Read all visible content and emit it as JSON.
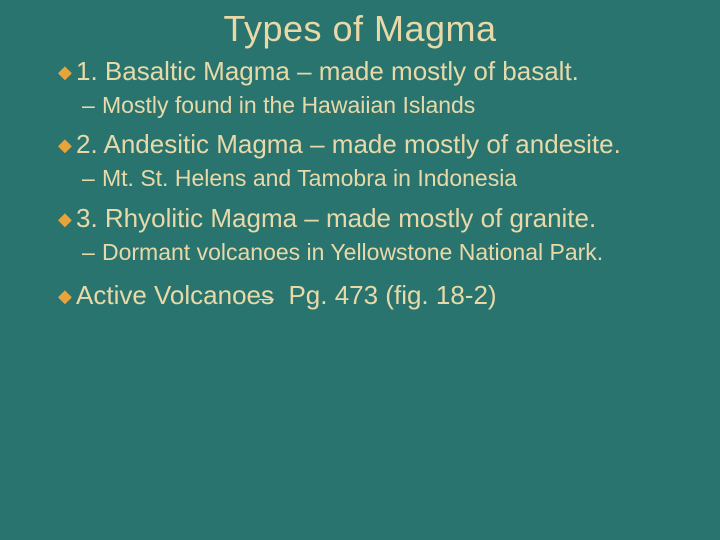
{
  "colors": {
    "background": "#2a7470",
    "text": "#e8d9a8",
    "bullet_diamond": "#e8a33a"
  },
  "typography": {
    "title_family": "Arial",
    "body_family": "Verdana",
    "title_size_pt": 36,
    "main_bullet_size_pt": 26,
    "sub_bullet_size_pt": 23
  },
  "title": "Types of Magma",
  "items": [
    {
      "main": "1. Basaltic Magma – made mostly of basalt.",
      "sub": "Mostly found in the Hawaiian Islands"
    },
    {
      "main": "2. Andesitic Magma – made mostly of andesite.",
      "sub": "Mt. St. Helens and Tamobra in Indonesia"
    },
    {
      "main": "3. Rhyolitic Magma – made mostly of granite.",
      "sub": "Dormant volcanoes in Yellowstone National Park."
    }
  ],
  "footer": {
    "prefix": "Active Volcanoes ",
    "arrow": "→",
    "suffix": " Pg. 473 (fig. 18-2)"
  }
}
